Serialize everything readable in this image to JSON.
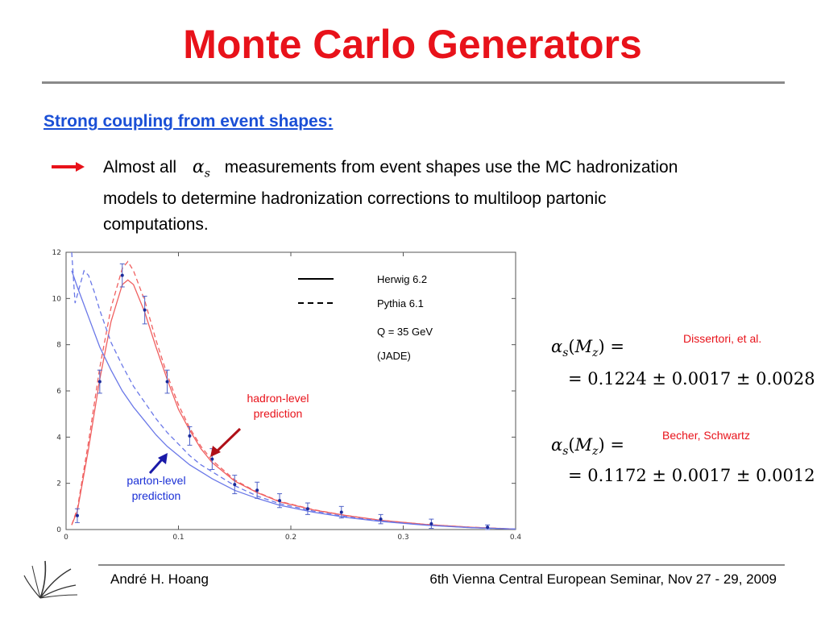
{
  "slide": {
    "title": "Monte Carlo Generators",
    "subheading": "Strong coupling from event shapes:",
    "bullet": {
      "icon": "right-arrow-icon",
      "text_before": "Almost all",
      "symbol": "α",
      "symbol_sub": "s",
      "text_after": "measurements from event shapes use the MC hadronization models to determine hadronization corrections to multiloop partonic computations."
    },
    "formulas": [
      {
        "lhs_symbol": "α",
        "lhs_sub": "s",
        "lhs_arg": "M",
        "lhs_arg_sub": "z",
        "result": "= 0.1224 ± 0.0017 ± 0.0028",
        "citation": "Dissertori, et al."
      },
      {
        "lhs_symbol": "α",
        "lhs_sub": "s",
        "lhs_arg": "M",
        "lhs_arg_sub": "z",
        "result": "= 0.1172 ± 0.0017 ± 0.0012",
        "citation": "Becher, Schwartz"
      }
    ],
    "footer": {
      "author": "André H. Hoang",
      "event": "6th Vienna Central European Seminar, Nov 27 - 29, 2009"
    },
    "colors": {
      "title": "#e8121a",
      "subheading": "#1a4fd6",
      "hadron": "#e8121a",
      "parton": "#1a2fd6"
    }
  },
  "chart_data": {
    "type": "line",
    "xlim": [
      0,
      0.4
    ],
    "ylim": [
      0,
      12
    ],
    "x_ticks": [
      "0",
      "0.1",
      "0.2",
      "0.3",
      "0.4"
    ],
    "y_ticks": [
      "0",
      "2",
      "4",
      "6",
      "8",
      "10",
      "12"
    ],
    "legend": [
      {
        "style": "solid",
        "label": "Herwig 6.2"
      },
      {
        "style": "dashed",
        "label": "Pythia 6.1"
      }
    ],
    "notes": [
      "Q = 35 GeV",
      "(JADE)"
    ],
    "annotations": [
      {
        "text_lines": [
          "hadron-level",
          "prediction"
        ],
        "color": "#e8121a"
      },
      {
        "text_lines": [
          "parton-level",
          "prediction"
        ],
        "color": "#1a2fd6"
      }
    ],
    "series": [
      {
        "kind": "hadron-solid",
        "color": "#f06060",
        "dash": false,
        "x": [
          0.005,
          0.01,
          0.02,
          0.03,
          0.04,
          0.05,
          0.055,
          0.06,
          0.07,
          0.08,
          0.09,
          0.1,
          0.11,
          0.12,
          0.13,
          0.15,
          0.17,
          0.19,
          0.22,
          0.25,
          0.28,
          0.32,
          0.36,
          0.4
        ],
        "y": [
          0.2,
          0.8,
          3.5,
          6.5,
          9.0,
          10.6,
          10.8,
          10.6,
          9.4,
          7.9,
          6.5,
          5.2,
          4.3,
          3.5,
          2.9,
          2.1,
          1.6,
          1.2,
          0.85,
          0.6,
          0.4,
          0.22,
          0.1,
          0.02
        ]
      },
      {
        "kind": "hadron-dashed",
        "color": "#f06060",
        "dash": true,
        "x": [
          0.005,
          0.01,
          0.02,
          0.03,
          0.04,
          0.05,
          0.055,
          0.06,
          0.07,
          0.08,
          0.09,
          0.1,
          0.11,
          0.12,
          0.13,
          0.15,
          0.17,
          0.19,
          0.22,
          0.25,
          0.28,
          0.32,
          0.36,
          0.4
        ],
        "y": [
          0.2,
          0.9,
          3.8,
          7.0,
          9.6,
          11.3,
          11.6,
          11.2,
          9.9,
          8.2,
          6.7,
          5.4,
          4.4,
          3.6,
          3.0,
          2.15,
          1.62,
          1.22,
          0.86,
          0.6,
          0.4,
          0.22,
          0.1,
          0.02
        ]
      },
      {
        "kind": "parton-solid",
        "color": "#6a78e8",
        "dash": false,
        "x": [
          0.005,
          0.01,
          0.02,
          0.03,
          0.04,
          0.05,
          0.06,
          0.07,
          0.08,
          0.09,
          0.1,
          0.11,
          0.12,
          0.13,
          0.15,
          0.17,
          0.19,
          0.22,
          0.25,
          0.28,
          0.32,
          0.36,
          0.4
        ],
        "y": [
          11.2,
          10.5,
          9.2,
          7.9,
          6.9,
          6.0,
          5.3,
          4.7,
          4.1,
          3.6,
          3.2,
          2.8,
          2.5,
          2.2,
          1.7,
          1.35,
          1.05,
          0.75,
          0.52,
          0.35,
          0.19,
          0.08,
          0.02
        ]
      },
      {
        "kind": "parton-dashed",
        "color": "#6a78e8",
        "dash": true,
        "x": [
          0.005,
          0.008,
          0.012,
          0.016,
          0.02,
          0.025,
          0.03,
          0.04,
          0.05,
          0.06,
          0.07,
          0.08,
          0.09,
          0.1,
          0.11,
          0.12,
          0.13,
          0.15,
          0.17,
          0.19,
          0.22,
          0.25,
          0.28,
          0.32,
          0.36,
          0.4
        ],
        "y": [
          12.0,
          9.8,
          10.5,
          11.2,
          11.0,
          10.3,
          9.5,
          8.1,
          7.1,
          6.2,
          5.5,
          4.8,
          4.2,
          3.7,
          3.2,
          2.8,
          2.5,
          1.9,
          1.45,
          1.12,
          0.8,
          0.55,
          0.37,
          0.2,
          0.08,
          0.02
        ]
      }
    ],
    "data_points": [
      {
        "x": 0.01,
        "y": 0.6,
        "err": 0.3
      },
      {
        "x": 0.03,
        "y": 6.4,
        "err": 0.5
      },
      {
        "x": 0.05,
        "y": 11.0,
        "err": 0.5
      },
      {
        "x": 0.07,
        "y": 9.5,
        "err": 0.6
      },
      {
        "x": 0.09,
        "y": 6.4,
        "err": 0.5
      },
      {
        "x": 0.11,
        "y": 4.05,
        "err": 0.4
      },
      {
        "x": 0.13,
        "y": 3.05,
        "err": 0.45
      },
      {
        "x": 0.15,
        "y": 1.95,
        "err": 0.4
      },
      {
        "x": 0.17,
        "y": 1.7,
        "err": 0.35
      },
      {
        "x": 0.19,
        "y": 1.25,
        "err": 0.3
      },
      {
        "x": 0.215,
        "y": 0.9,
        "err": 0.25
      },
      {
        "x": 0.245,
        "y": 0.75,
        "err": 0.25
      },
      {
        "x": 0.28,
        "y": 0.45,
        "err": 0.2
      },
      {
        "x": 0.325,
        "y": 0.25,
        "err": 0.2
      },
      {
        "x": 0.375,
        "y": 0.1,
        "err": 0.1
      }
    ]
  }
}
